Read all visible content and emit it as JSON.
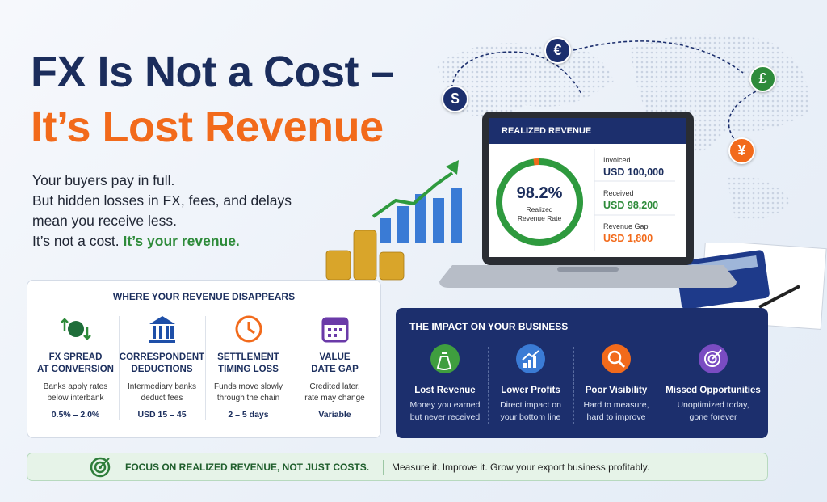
{
  "header": {
    "title_line1": "FX Is Not a Cost –",
    "title_line2": "It’s Lost Revenue"
  },
  "intro": {
    "lines": [
      "Your buyers pay in full.",
      "But hidden losses in FX, fees, and delays",
      "mean you receive less."
    ],
    "closing_plain": "It’s not a cost.",
    "closing_emphasis": "It’s your revenue."
  },
  "currencies": [
    "$",
    "€",
    "£",
    "¥"
  ],
  "dashboard": {
    "title": "REALIZED REVENUE",
    "rate": "98.2%",
    "rate_label": [
      "Realized",
      "Revenue Rate"
    ],
    "stats": [
      {
        "label": "Invoiced",
        "value": "USD 100,000"
      },
      {
        "label": "Received",
        "value": "USD 98,200"
      },
      {
        "label": "Revenue Gap",
        "value": "USD 1,800"
      }
    ]
  },
  "losses": {
    "title": "WHERE YOUR REVENUE DISAPPEARS",
    "items": [
      {
        "title": [
          "FX SPREAD",
          "AT CONVERSION"
        ],
        "description": [
          "Banks apply rates",
          "below interbank"
        ],
        "value": "0.5% – 2.0%"
      },
      {
        "title": [
          "CORRESPONDENT",
          "DEDUCTIONS"
        ],
        "description": [
          "Intermediary banks",
          "deduct fees"
        ],
        "value": "USD 15 – 45"
      },
      {
        "title": [
          "SETTLEMENT",
          "TIMING LOSS"
        ],
        "description": [
          "Funds move slowly",
          "through the chain"
        ],
        "value": "2 – 5 days"
      },
      {
        "title": [
          "VALUE",
          "DATE GAP"
        ],
        "description": [
          "Credited later,",
          "rate may change"
        ],
        "value": "Variable"
      }
    ]
  },
  "impact": {
    "title": "THE IMPACT ON YOUR BUSINESS",
    "items": [
      {
        "title": "Lost Revenue",
        "description": [
          "Money you earned",
          "but never received"
        ]
      },
      {
        "title": "Lower Profits",
        "description": [
          "Direct impact on",
          "your bottom line"
        ]
      },
      {
        "title": "Poor Visibility",
        "description": [
          "Hard to measure,",
          "hard to improve"
        ]
      },
      {
        "title": "Missed Opportunities",
        "description": [
          "Unoptimized today,",
          "gone forever"
        ]
      }
    ]
  },
  "footer": {
    "heading": "FOCUS ON REALIZED REVENUE, NOT JUST COSTS.",
    "text": "Measure it. Improve it. Grow your export business profitably."
  }
}
